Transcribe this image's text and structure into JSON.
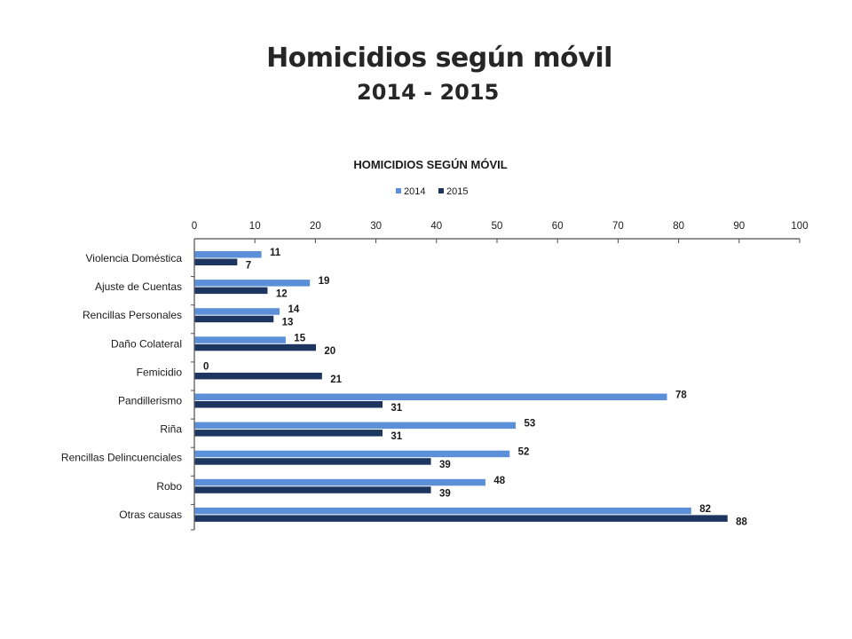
{
  "slide": {
    "title": "Homicidios según móvil",
    "subtitle": "2014 - 2015"
  },
  "chart_data": {
    "type": "bar",
    "orientation": "horizontal",
    "title": "HOMICIDIOS SEGÚN MÓVIL",
    "categories": [
      "Violencia Doméstica",
      "Ajuste de Cuentas",
      "Rencillas Personales",
      "Daño Colateral",
      "Femicidio",
      "Pandillerismo",
      "Riña",
      "Rencillas Delincuenciales",
      "Robo",
      "Otras causas"
    ],
    "series": [
      {
        "name": "2014",
        "color": "#5b8fd8",
        "values": [
          11,
          19,
          14,
          15,
          0,
          78,
          53,
          52,
          48,
          82
        ]
      },
      {
        "name": "2015",
        "color": "#1c3660",
        "values": [
          7,
          12,
          13,
          20,
          21,
          31,
          31,
          39,
          39,
          88
        ]
      }
    ],
    "xlim": [
      0,
      100
    ],
    "x_ticks": [
      0,
      10,
      20,
      30,
      40,
      50,
      60,
      70,
      80,
      90,
      100
    ],
    "x_axis_position": "top",
    "grid": false,
    "legend_position": "top"
  }
}
